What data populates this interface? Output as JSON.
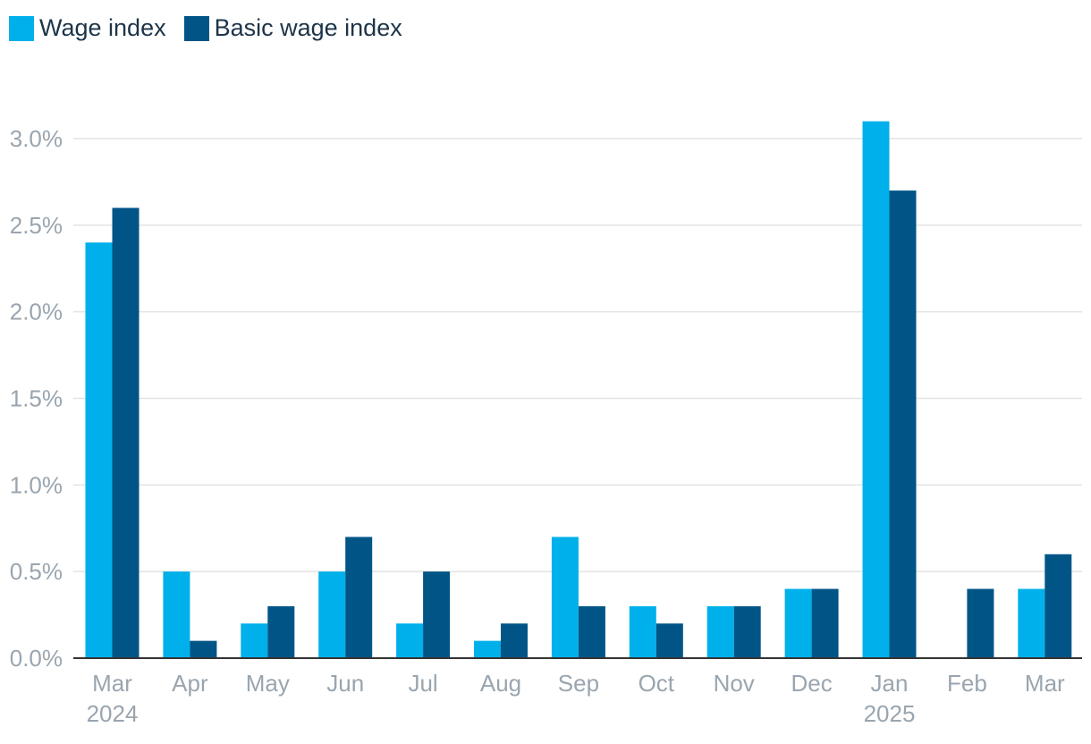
{
  "legend": {
    "items": [
      {
        "label": "Wage index",
        "color": "#00b0ea"
      },
      {
        "label": "Basic wage index",
        "color": "#005587"
      }
    ]
  },
  "chart_data": {
    "type": "bar",
    "categories": [
      "Mar",
      "Apr",
      "May",
      "Jun",
      "Jul",
      "Aug",
      "Sep",
      "Oct",
      "Nov",
      "Dec",
      "Jan",
      "Feb",
      "Mar"
    ],
    "category_sublabels": [
      "2024",
      "",
      "",
      "",
      "",
      "",
      "",
      "",
      "",
      "",
      "2025",
      "",
      ""
    ],
    "series": [
      {
        "name": "Wage index",
        "color": "#00b0ea",
        "values": [
          2.4,
          0.5,
          0.2,
          0.5,
          0.2,
          0.1,
          0.7,
          0.3,
          0.3,
          0.4,
          3.1,
          0.0,
          0.4
        ]
      },
      {
        "name": "Basic wage index",
        "color": "#005587",
        "values": [
          2.6,
          0.1,
          0.3,
          0.7,
          0.5,
          0.2,
          0.3,
          0.2,
          0.3,
          0.4,
          2.7,
          0.4,
          0.6
        ]
      }
    ],
    "y_ticks": [
      "0.0%",
      "0.5%",
      "1.0%",
      "1.5%",
      "2.0%",
      "2.5%",
      "3.0%"
    ],
    "ylim": [
      0,
      3.0
    ],
    "grid": true,
    "legend_position": "top-left"
  }
}
